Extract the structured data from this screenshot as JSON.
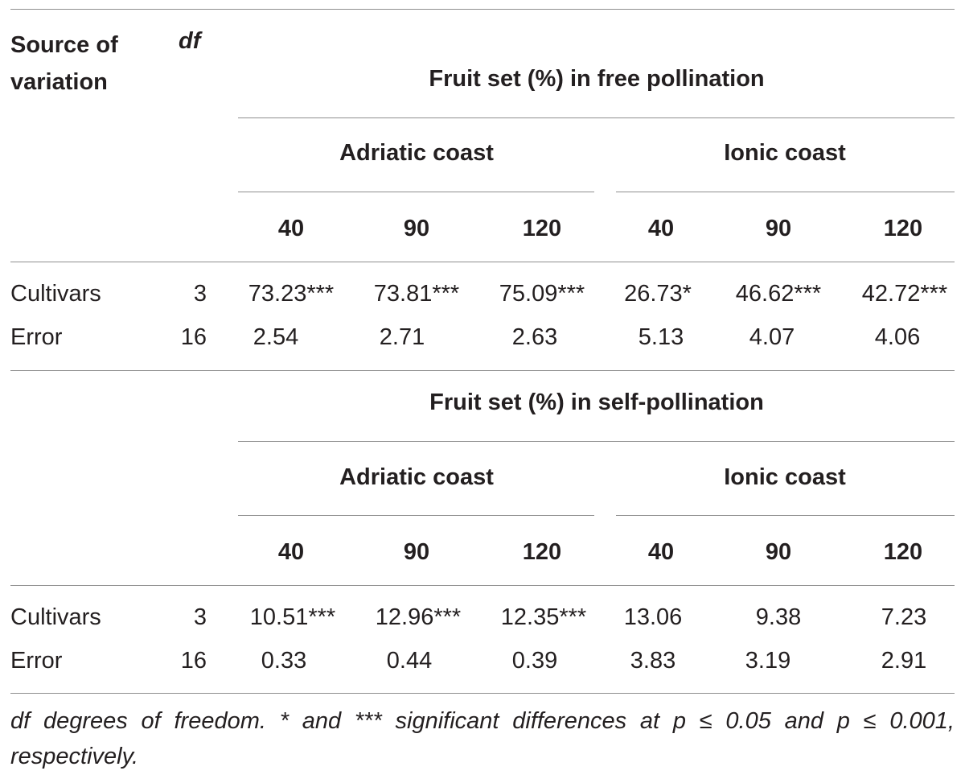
{
  "header": {
    "source_label_line1": "Source of",
    "source_label_line2": "variation",
    "df_label": "df"
  },
  "sections": [
    {
      "title": "Fruit set (%) in free pollination",
      "groups": [
        "Adriatic coast",
        "Ionic coast"
      ],
      "days": [
        "40",
        "90",
        "120",
        "40",
        "90",
        "120"
      ],
      "rows": [
        {
          "source": "Cultivars",
          "df": "3",
          "values": [
            "73.23***",
            "73.81***",
            "75.09***",
            "26.73*",
            "46.62***",
            "42.72***"
          ]
        },
        {
          "source": "Error",
          "df": "16",
          "values": [
            "2.54",
            "2.71",
            "2.63",
            "5.13",
            "4.07",
            "4.06"
          ]
        }
      ]
    },
    {
      "title": "Fruit set (%) in self-pollination",
      "groups": [
        "Adriatic coast",
        "Ionic coast"
      ],
      "days": [
        "40",
        "90",
        "120",
        "40",
        "90",
        "120"
      ],
      "rows": [
        {
          "source": "Cultivars",
          "df": "3",
          "values": [
            "10.51***",
            "12.96***",
            "12.35***",
            "13.06",
            "9.38",
            "7.23"
          ]
        },
        {
          "source": "Error",
          "df": "16",
          "values": [
            "0.33",
            "0.44",
            "0.39",
            "3.83",
            "3.19",
            "2.91"
          ]
        }
      ]
    }
  ],
  "footnote": "df degrees of freedom. * and *** significant differences at p ≤ 0.05 and p ≤ 0.001, respectively."
}
